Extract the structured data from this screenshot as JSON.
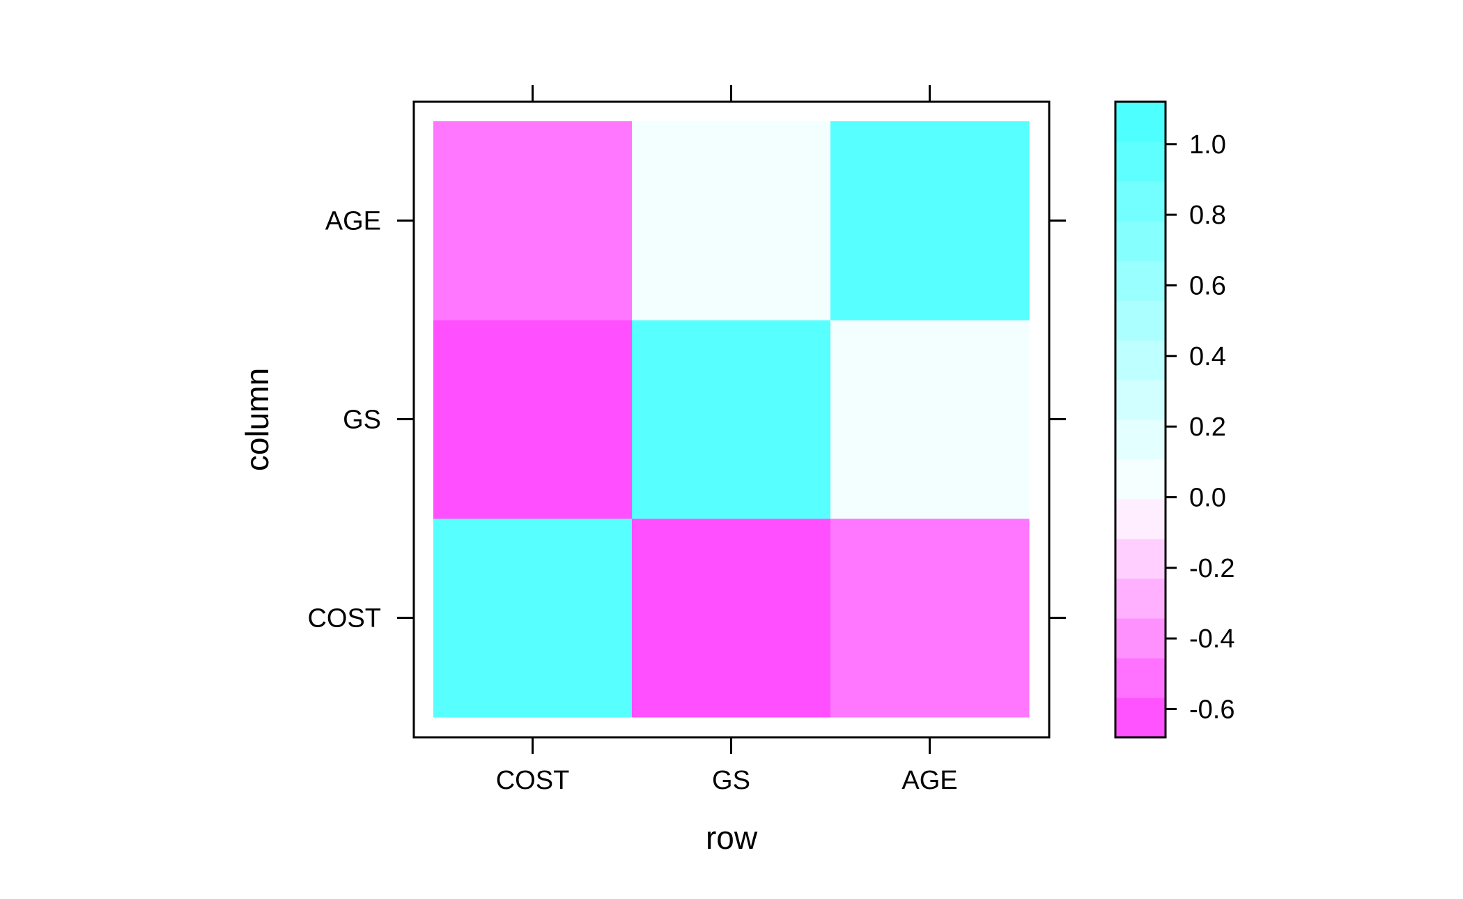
{
  "chart_data": {
    "type": "heatmap",
    "title": "",
    "xlabel": "row",
    "ylabel": "column",
    "x_categories": [
      "COST",
      "GS",
      "AGE"
    ],
    "y_categories": [
      "COST",
      "GS",
      "AGE"
    ],
    "values": [
      [
        1.0,
        -0.64,
        -0.5
      ],
      [
        -0.64,
        1.0,
        0.07
      ],
      [
        -0.5,
        0.07,
        1.0
      ]
    ],
    "colorbar": {
      "ticks": [
        {
          "value": -0.6,
          "label": "-0.6"
        },
        {
          "value": -0.4,
          "label": "-0.4"
        },
        {
          "value": -0.2,
          "label": "-0.2"
        },
        {
          "value": 0.0,
          "label": "0.0"
        },
        {
          "value": 0.2,
          "label": "0.2"
        },
        {
          "value": 0.4,
          "label": "0.4"
        },
        {
          "value": 0.6,
          "label": "0.6"
        },
        {
          "value": 0.8,
          "label": "0.8"
        },
        {
          "value": 1.0,
          "label": "1.0"
        }
      ],
      "range": [
        -0.68,
        1.12
      ],
      "bins": 16,
      "low_color": "#ff44ff",
      "mid_color": "#ffffff",
      "high_color": "#44ffff"
    },
    "legend": "right",
    "grid": false
  }
}
